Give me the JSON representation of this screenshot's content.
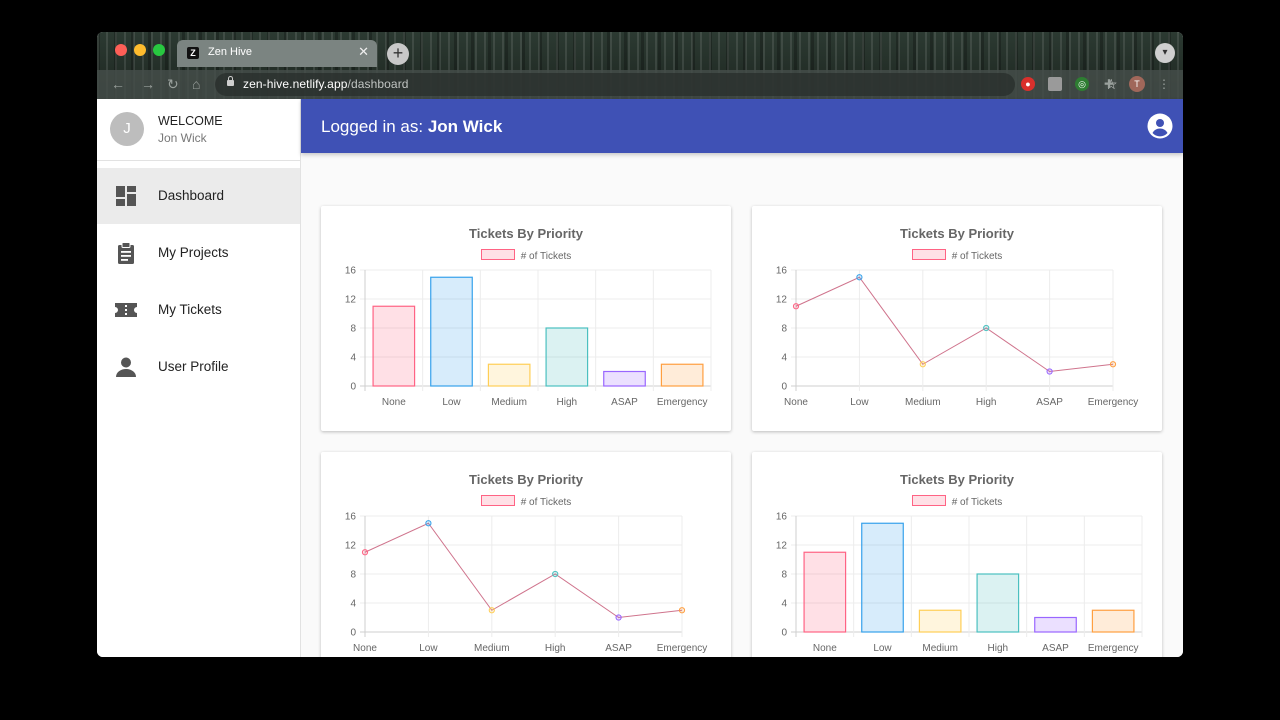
{
  "browser": {
    "tab_title": "Zen Hive",
    "tab_favicon": "Z",
    "url_host": "zen-hive.netlify.app",
    "url_path": "/dashboard",
    "profile_initial": "T"
  },
  "sidebar": {
    "welcome": "WELCOME",
    "user_name": "Jon Wick",
    "avatar_initial": "J",
    "items": [
      {
        "label": "Dashboard",
        "icon": "dashboard-icon",
        "active": true
      },
      {
        "label": "My Projects",
        "icon": "clipboard-icon",
        "active": false
      },
      {
        "label": "My Tickets",
        "icon": "ticket-icon",
        "active": false
      },
      {
        "label": "User Profile",
        "icon": "person-icon",
        "active": false
      }
    ]
  },
  "header": {
    "prefix": "Logged in as: ",
    "user": "Jon Wick"
  },
  "cards": [
    {
      "title": "Tickets By Priority",
      "legend": "# of Tickets"
    },
    {
      "title": "Tickets By Priority",
      "legend": "# of Tickets"
    },
    {
      "title": "Tickets By Priority",
      "legend": "# of Tickets"
    },
    {
      "title": "Tickets By Priority",
      "legend": "# of Tickets"
    }
  ],
  "chart_data": [
    {
      "type": "bar",
      "title": "Tickets By Priority",
      "categories": [
        "None",
        "Low",
        "Medium",
        "High",
        "ASAP",
        "Emergency"
      ],
      "series": [
        {
          "name": "# of Tickets",
          "values": [
            11,
            15,
            3,
            8,
            2,
            3
          ]
        }
      ],
      "ylim": [
        0,
        16
      ],
      "yticks": [
        0,
        4,
        8,
        12,
        16
      ],
      "grid": true,
      "legend": "top"
    },
    {
      "type": "line",
      "title": "Tickets By Priority",
      "categories": [
        "None",
        "Low",
        "Medium",
        "High",
        "ASAP",
        "Emergency"
      ],
      "series": [
        {
          "name": "# of Tickets",
          "values": [
            11,
            15,
            3,
            8,
            2,
            3
          ]
        }
      ],
      "ylim": [
        0,
        16
      ],
      "yticks": [
        0,
        4,
        8,
        12,
        16
      ],
      "grid": true,
      "legend": "top"
    },
    {
      "type": "line",
      "title": "Tickets By Priority",
      "categories": [
        "None",
        "Low",
        "Medium",
        "High",
        "ASAP",
        "Emergency"
      ],
      "series": [
        {
          "name": "# of Tickets",
          "values": [
            11,
            15,
            3,
            8,
            2,
            3
          ]
        }
      ],
      "ylim": [
        0,
        16
      ],
      "yticks": [
        0,
        4,
        8,
        12,
        16
      ],
      "grid": true,
      "legend": "top"
    },
    {
      "type": "bar",
      "title": "Tickets By Priority",
      "categories": [
        "None",
        "Low",
        "Medium",
        "High",
        "ASAP",
        "Emergency"
      ],
      "series": [
        {
          "name": "# of Tickets",
          "values": [
            11,
            15,
            3,
            8,
            2,
            3
          ]
        }
      ],
      "ylim": [
        0,
        16
      ],
      "yticks": [
        0,
        4,
        8,
        12,
        16
      ],
      "grid": true,
      "legend": "top"
    }
  ],
  "colors": {
    "appbar": "#3f51b5",
    "point_fills": [
      "rgba(255,99,132,0.2)",
      "rgba(54,162,235,0.2)",
      "rgba(255,206,86,0.2)",
      "rgba(75,192,192,0.2)",
      "rgba(153,102,255,0.2)",
      "rgba(255,159,64,0.2)"
    ],
    "point_strokes": [
      "rgba(255,99,132,1)",
      "rgba(54,162,235,1)",
      "rgba(255,206,86,1)",
      "rgba(75,192,192,1)",
      "rgba(153,102,255,1)",
      "rgba(255,159,64,1)"
    ]
  }
}
